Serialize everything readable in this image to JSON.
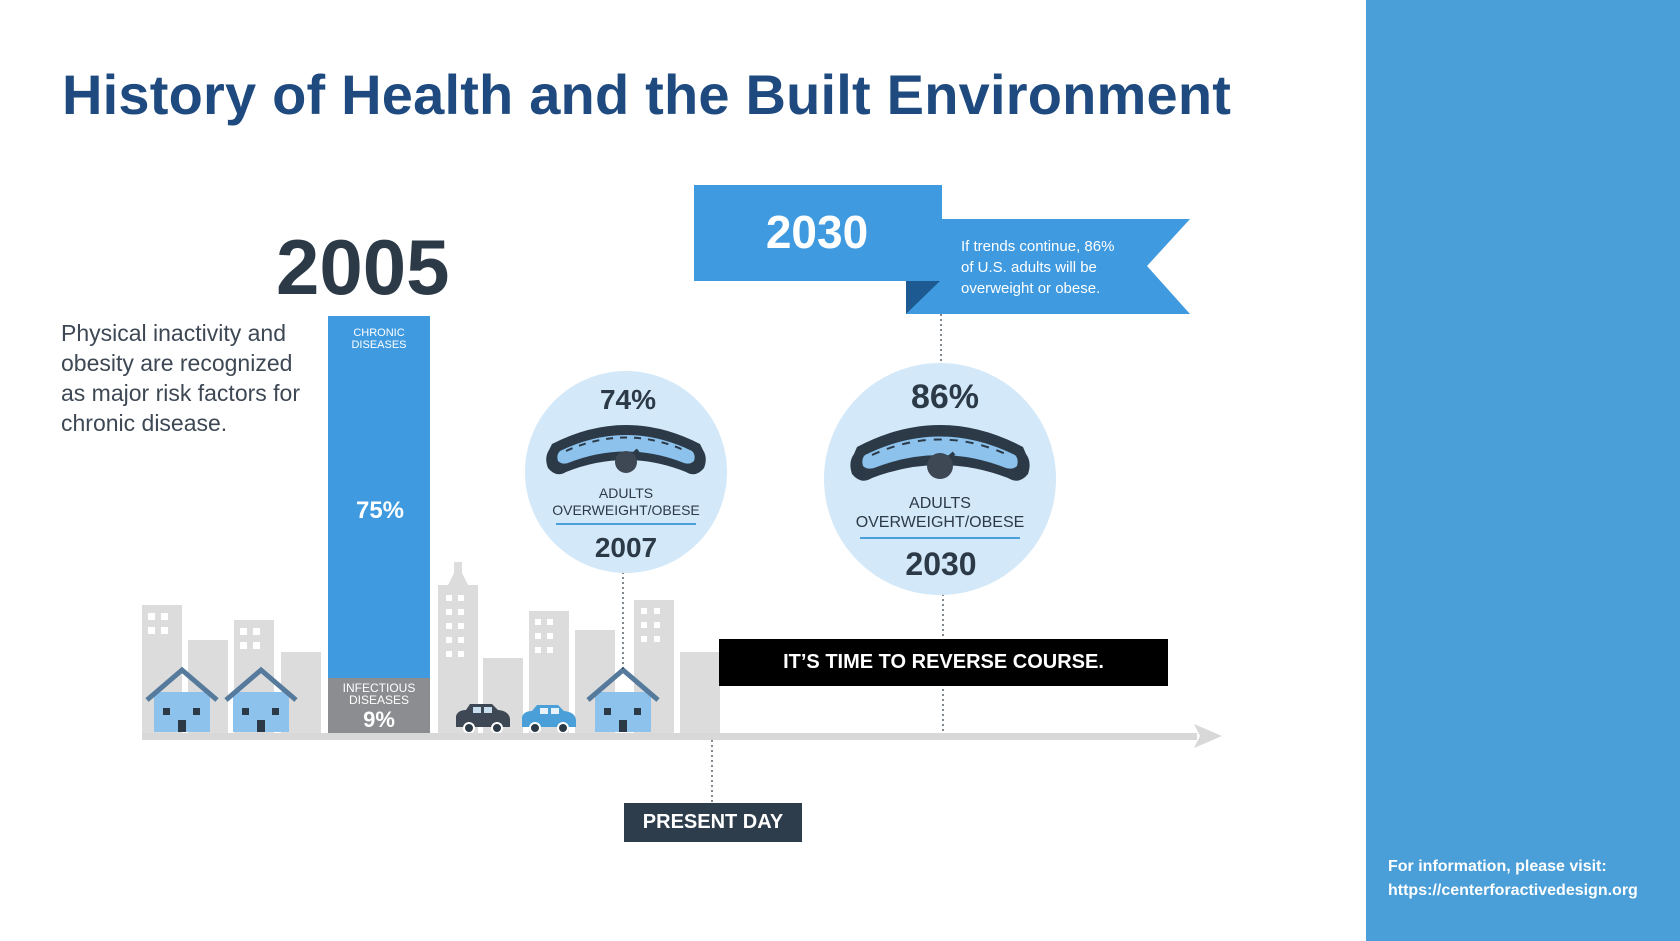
{
  "title": "History of Health and the Built Environment",
  "year_2005": "2005",
  "description": "Physical inactivity and obesity are recognized as major risk factors for chronic disease.",
  "bar": {
    "chronic_label": "CHRONIC DISEASES",
    "chronic_value": "75%",
    "infectious_label": "INFECTIOUS DISEASES",
    "infectious_value": "9%"
  },
  "banner_2030": {
    "year": "2030",
    "text": "If trends continue, 86% of U.S. adults will be overweight or obese."
  },
  "gauge_2007": {
    "percent": "74%",
    "label": "ADULTS OVERWEIGHT/OBESE",
    "year": "2007"
  },
  "gauge_2030": {
    "percent": "86%",
    "label": "ADULTS OVERWEIGHT/OBESE",
    "year": "2030"
  },
  "reverse_course": "IT’S TIME TO REVERSE COURSE.",
  "present_day": "PRESENT DAY",
  "info": {
    "line1": "For information, please visit:",
    "line2": "https://centerforactivedesign.org"
  },
  "colors": {
    "navy": "#1e4a7f",
    "blue": "#3f9ae0",
    "light_blue": "#d3e8f8",
    "side_panel": "#4a9fd8",
    "building_gray": "#dcdcdc"
  }
}
